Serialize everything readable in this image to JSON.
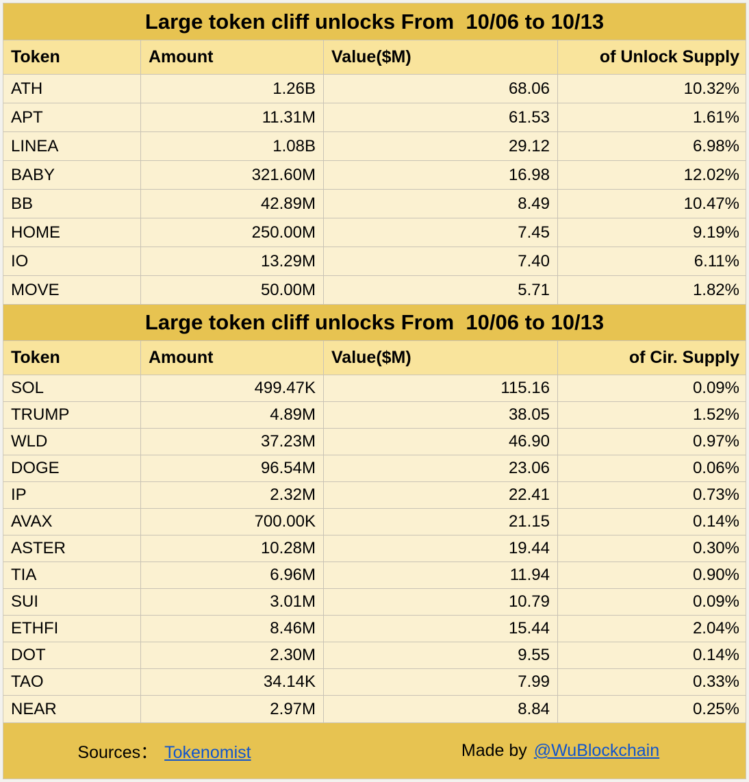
{
  "colors": {
    "band_gold": "#e7c351",
    "header_yellow": "#f9e49c",
    "row_cream": "#fbf1d1",
    "gridline": "#c9c3b5",
    "link_blue": "#1155cc",
    "text": "#000000"
  },
  "tables": [
    {
      "title": "Large token cliff unlocks From  10/06 to 10/13",
      "headers": [
        "Token",
        "Amount",
        "Value($M)",
        "of Unlock Supply"
      ],
      "rows": [
        {
          "token": "ATH",
          "amount": "1.26B",
          "value": "68.06",
          "pct": "10.32%"
        },
        {
          "token": "APT",
          "amount": "11.31M",
          "value": "61.53",
          "pct": "1.61%"
        },
        {
          "token": "LINEA",
          "amount": "1.08B",
          "value": "29.12",
          "pct": "6.98%"
        },
        {
          "token": "BABY",
          "amount": "321.60M",
          "value": "16.98",
          "pct": "12.02%"
        },
        {
          "token": "BB",
          "amount": "42.89M",
          "value": "8.49",
          "pct": "10.47%"
        },
        {
          "token": "HOME",
          "amount": "250.00M",
          "value": "7.45",
          "pct": "9.19%"
        },
        {
          "token": "IO",
          "amount": "13.29M",
          "value": "7.40",
          "pct": "6.11%"
        },
        {
          "token": "MOVE",
          "amount": "50.00M",
          "value": "5.71",
          "pct": "1.82%"
        }
      ]
    },
    {
      "title": "Large token cliff unlocks From  10/06 to 10/13",
      "headers": [
        "Token",
        "Amount",
        "Value($M)",
        "of Cir. Supply"
      ],
      "rows": [
        {
          "token": "SOL",
          "amount": "499.47K",
          "value": "115.16",
          "pct": "0.09%"
        },
        {
          "token": "TRUMP",
          "amount": "4.89M",
          "value": "38.05",
          "pct": "1.52%"
        },
        {
          "token": "WLD",
          "amount": "37.23M",
          "value": "46.90",
          "pct": "0.97%"
        },
        {
          "token": "DOGE",
          "amount": "96.54M",
          "value": "23.06",
          "pct": "0.06%"
        },
        {
          "token": "IP",
          "amount": "2.32M",
          "value": "22.41",
          "pct": "0.73%"
        },
        {
          "token": "AVAX",
          "amount": "700.00K",
          "value": "21.15",
          "pct": "0.14%"
        },
        {
          "token": "ASTER",
          "amount": "10.28M",
          "value": "19.44",
          "pct": "0.30%"
        },
        {
          "token": "TIA",
          "amount": "6.96M",
          "value": "11.94",
          "pct": "0.90%"
        },
        {
          "token": "SUI",
          "amount": "3.01M",
          "value": "10.79",
          "pct": "0.09%"
        },
        {
          "token": "ETHFI",
          "amount": "8.46M",
          "value": "15.44",
          "pct": "2.04%"
        },
        {
          "token": "DOT",
          "amount": "2.30M",
          "value": "9.55",
          "pct": "0.14%"
        },
        {
          "token": "TAO",
          "amount": "34.14K",
          "value": "7.99",
          "pct": "0.33%"
        },
        {
          "token": "NEAR",
          "amount": "2.97M",
          "value": "8.84",
          "pct": "0.25%"
        }
      ]
    }
  ],
  "footer": {
    "sources_label": "Sources：",
    "sources_link": "Tokenomist",
    "made_by_label": "Made by",
    "made_by_link": "@WuBlockchain"
  },
  "chart_data": [
    {
      "type": "table",
      "title": "Large token cliff unlocks From 10/06 to 10/13",
      "columns": [
        "Token",
        "Amount",
        "Value($M)",
        "of Unlock Supply"
      ],
      "rows": [
        [
          "ATH",
          "1.26B",
          68.06,
          "10.32%"
        ],
        [
          "APT",
          "11.31M",
          61.53,
          "1.61%"
        ],
        [
          "LINEA",
          "1.08B",
          29.12,
          "6.98%"
        ],
        [
          "BABY",
          "321.60M",
          16.98,
          "12.02%"
        ],
        [
          "BB",
          "42.89M",
          8.49,
          "10.47%"
        ],
        [
          "HOME",
          "250.00M",
          7.45,
          "9.19%"
        ],
        [
          "IO",
          "13.29M",
          7.4,
          "6.11%"
        ],
        [
          "MOVE",
          "50.00M",
          5.71,
          "1.82%"
        ]
      ]
    },
    {
      "type": "table",
      "title": "Large token cliff unlocks From 10/06 to 10/13",
      "columns": [
        "Token",
        "Amount",
        "Value($M)",
        "of Cir. Supply"
      ],
      "rows": [
        [
          "SOL",
          "499.47K",
          115.16,
          "0.09%"
        ],
        [
          "TRUMP",
          "4.89M",
          38.05,
          "1.52%"
        ],
        [
          "WLD",
          "37.23M",
          46.9,
          "0.97%"
        ],
        [
          "DOGE",
          "96.54M",
          23.06,
          "0.06%"
        ],
        [
          "IP",
          "2.32M",
          22.41,
          "0.73%"
        ],
        [
          "AVAX",
          "700.00K",
          21.15,
          "0.14%"
        ],
        [
          "ASTER",
          "10.28M",
          19.44,
          "0.30%"
        ],
        [
          "TIA",
          "6.96M",
          11.94,
          "0.90%"
        ],
        [
          "SUI",
          "3.01M",
          10.79,
          "0.09%"
        ],
        [
          "ETHFI",
          "8.46M",
          15.44,
          "2.04%"
        ],
        [
          "DOT",
          "2.30M",
          9.55,
          "0.14%"
        ],
        [
          "TAO",
          "34.14K",
          7.99,
          "0.33%"
        ],
        [
          "NEAR",
          "2.97M",
          8.84,
          "0.25%"
        ]
      ]
    }
  ]
}
